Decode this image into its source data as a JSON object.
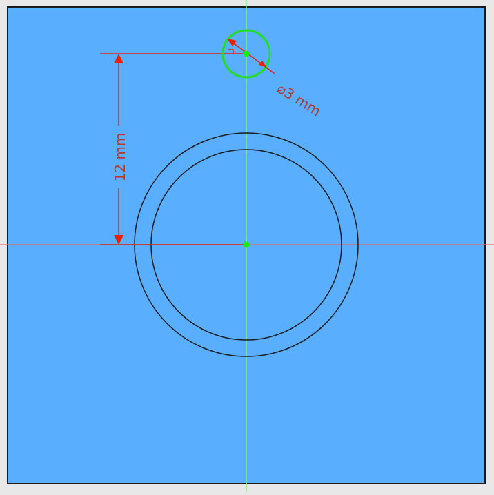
{
  "sketch": {
    "colors": {
      "outer_background": "#e8e8e8",
      "face_fill": "#5aaefe",
      "face_border": "#1a1a1a",
      "edge": "#1a1a1a",
      "vertical_axis": "#7ff07a",
      "horizontal_axis": "#e06a6a",
      "dimension": "#e8200a",
      "dimension_text": "#b03a2e",
      "selected_circle": "#22dd22",
      "point": "#11ee11"
    },
    "dimensions": {
      "vertical_offset_label": "12 mm",
      "diameter_label": "⌀3 mm"
    },
    "icons": {
      "constraint_marker": "perpendicular-constraint-icon"
    }
  }
}
